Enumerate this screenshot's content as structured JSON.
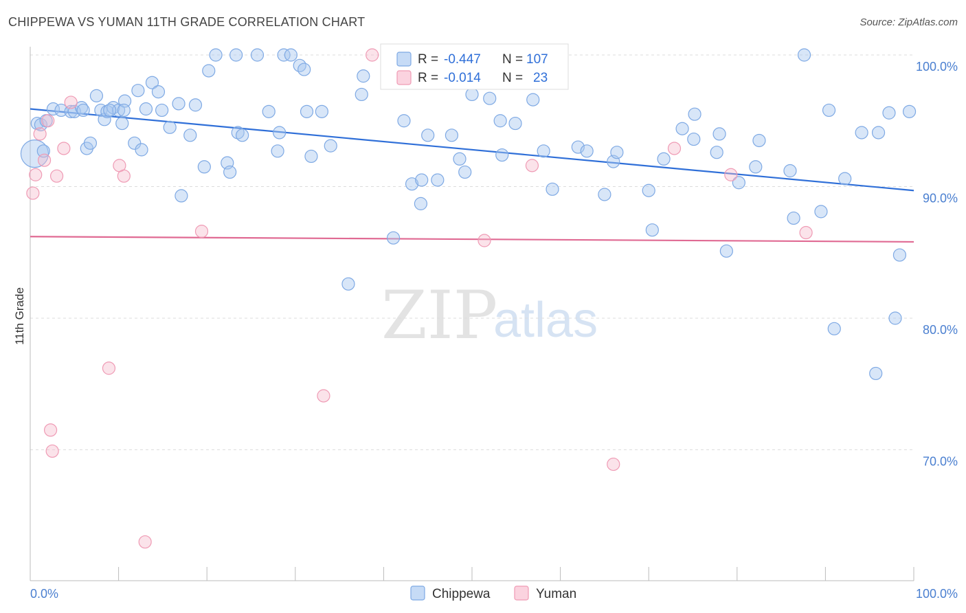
{
  "title": "CHIPPEWA VS YUMAN 11TH GRADE CORRELATION CHART",
  "source": "Source: ZipAtlas.com",
  "watermark": {
    "zip": "ZIP",
    "atlas": "atlas"
  },
  "legend_box": {
    "rows": [
      {
        "r_label": "R =",
        "r_value": "-0.447",
        "n_label": "N =",
        "n_value": "107",
        "color": "#a9c8f0"
      },
      {
        "r_label": "R =",
        "r_value": "-0.014",
        "n_label": "N =",
        "n_value": "23",
        "color": "#f6b8cb"
      }
    ]
  },
  "bottom_legend": [
    {
      "label": "Chippewa",
      "color": "#a9c8f0"
    },
    {
      "label": "Yuman",
      "color": "#f6b8cb"
    }
  ],
  "chart_data": {
    "type": "scatter",
    "title": "CHIPPEWA VS YUMAN 11TH GRADE CORRELATION CHART",
    "xlabel": "",
    "ylabel": "11th Grade",
    "xlim": [
      0,
      100
    ],
    "ylim": [
      60,
      102
    ],
    "x_tick_labels": [
      "0.0%",
      "100.0%"
    ],
    "y_ticks": [
      70,
      80,
      90,
      100
    ],
    "y_tick_labels": [
      "70.0%",
      "80.0%",
      "90.0%",
      "100.0%"
    ],
    "grid": true,
    "colors": {
      "Chippewa": "#6fa3e6",
      "Yuman": "#ee8fac",
      "Chippewa_line": "#2f6fd8",
      "Yuman_line": "#e06a93"
    },
    "series": [
      {
        "name": "Chippewa",
        "r": -0.447,
        "n": 107,
        "trend": {
          "x": [
            0,
            100
          ],
          "y": [
            95.9,
            89.7
          ]
        },
        "points": [
          [
            0.5,
            92.5
          ],
          [
            0.8,
            94.8
          ],
          [
            1.2,
            94.7
          ],
          [
            1.5,
            92.7
          ],
          [
            1.8,
            95.0
          ],
          [
            2.6,
            95.9
          ],
          [
            3.5,
            95.8
          ],
          [
            4.6,
            95.7
          ],
          [
            5.0,
            95.7
          ],
          [
            5.8,
            96.0
          ],
          [
            6.4,
            92.9
          ],
          [
            6.8,
            93.3
          ],
          [
            7.5,
            96.9
          ],
          [
            8.0,
            95.8
          ],
          [
            8.4,
            95.1
          ],
          [
            8.7,
            95.7
          ],
          [
            9.4,
            96.0
          ],
          [
            10.0,
            95.8
          ],
          [
            10.4,
            94.8
          ],
          [
            10.7,
            96.5
          ],
          [
            11.8,
            93.3
          ],
          [
            12.2,
            97.3
          ],
          [
            12.6,
            92.8
          ],
          [
            13.1,
            95.9
          ],
          [
            13.8,
            97.9
          ],
          [
            14.5,
            97.2
          ],
          [
            14.9,
            95.8
          ],
          [
            15.8,
            94.5
          ],
          [
            16.8,
            96.3
          ],
          [
            17.1,
            89.3
          ],
          [
            18.1,
            93.9
          ],
          [
            18.7,
            96.2
          ],
          [
            19.7,
            91.5
          ],
          [
            20.2,
            98.8
          ],
          [
            21.0,
            100.0
          ],
          [
            22.3,
            91.8
          ],
          [
            22.6,
            91.1
          ],
          [
            23.3,
            100.0
          ],
          [
            23.5,
            94.1
          ],
          [
            24.0,
            93.9
          ],
          [
            25.7,
            100.0
          ],
          [
            27.0,
            95.7
          ],
          [
            28.0,
            92.7
          ],
          [
            28.2,
            94.1
          ],
          [
            28.7,
            100.0
          ],
          [
            29.5,
            100.0
          ],
          [
            30.5,
            99.2
          ],
          [
            31.0,
            98.9
          ],
          [
            31.3,
            95.7
          ],
          [
            31.8,
            92.3
          ],
          [
            33.0,
            95.7
          ],
          [
            34.0,
            93.1
          ],
          [
            36.0,
            82.6
          ],
          [
            37.5,
            97.0
          ],
          [
            41.1,
            86.1
          ],
          [
            42.3,
            95.0
          ],
          [
            43.2,
            90.2
          ],
          [
            44.2,
            88.7
          ],
          [
            44.3,
            90.5
          ],
          [
            45.0,
            93.9
          ],
          [
            46.1,
            90.5
          ],
          [
            47.7,
            93.9
          ],
          [
            48.6,
            92.1
          ],
          [
            49.2,
            91.1
          ],
          [
            50.0,
            97.0
          ],
          [
            52.0,
            96.7
          ],
          [
            53.2,
            95.0
          ],
          [
            53.4,
            92.4
          ],
          [
            54.9,
            94.8
          ],
          [
            56.9,
            96.6
          ],
          [
            58.1,
            92.7
          ],
          [
            59.1,
            89.8
          ],
          [
            62.0,
            93.0
          ],
          [
            63.0,
            92.7
          ],
          [
            65.0,
            89.4
          ],
          [
            66.0,
            91.9
          ],
          [
            66.4,
            92.6
          ],
          [
            70.0,
            89.7
          ],
          [
            70.4,
            86.7
          ],
          [
            71.7,
            92.1
          ],
          [
            73.8,
            94.4
          ],
          [
            75.1,
            93.6
          ],
          [
            75.2,
            95.5
          ],
          [
            77.7,
            92.6
          ],
          [
            78.0,
            94.0
          ],
          [
            78.8,
            85.1
          ],
          [
            80.2,
            90.3
          ],
          [
            82.1,
            91.5
          ],
          [
            82.5,
            93.5
          ],
          [
            86.0,
            91.2
          ],
          [
            86.4,
            87.6
          ],
          [
            87.6,
            100.0
          ],
          [
            89.5,
            88.1
          ],
          [
            90.4,
            95.8
          ],
          [
            91.0,
            79.2
          ],
          [
            92.2,
            90.6
          ],
          [
            94.1,
            94.1
          ],
          [
            95.7,
            75.8
          ],
          [
            96.0,
            94.1
          ],
          [
            97.2,
            95.6
          ],
          [
            97.9,
            80.0
          ],
          [
            98.4,
            84.8
          ],
          [
            99.5,
            95.7
          ],
          [
            6.0,
            95.8
          ],
          [
            9.0,
            95.8
          ],
          [
            10.6,
            95.8
          ],
          [
            37.7,
            98.4
          ]
        ]
      },
      {
        "name": "Yuman",
        "r": -0.014,
        "n": 23,
        "trend": {
          "x": [
            0,
            100
          ],
          "y": [
            86.2,
            85.8
          ]
        },
        "points": [
          [
            0.3,
            89.5
          ],
          [
            0.6,
            90.9
          ],
          [
            1.1,
            94.0
          ],
          [
            1.6,
            92.0
          ],
          [
            2.3,
            71.5
          ],
          [
            2.5,
            69.9
          ],
          [
            3.0,
            90.8
          ],
          [
            3.8,
            92.9
          ],
          [
            4.6,
            96.4
          ],
          [
            8.9,
            76.2
          ],
          [
            10.1,
            91.6
          ],
          [
            10.6,
            90.8
          ],
          [
            13.0,
            63.0
          ],
          [
            19.4,
            86.6
          ],
          [
            33.2,
            74.1
          ],
          [
            38.7,
            100.0
          ],
          [
            51.4,
            85.9
          ],
          [
            56.8,
            91.6
          ],
          [
            66.0,
            68.9
          ],
          [
            72.9,
            92.9
          ],
          [
            79.3,
            90.9
          ],
          [
            87.8,
            86.5
          ],
          [
            2.0,
            95.0
          ]
        ]
      }
    ]
  }
}
